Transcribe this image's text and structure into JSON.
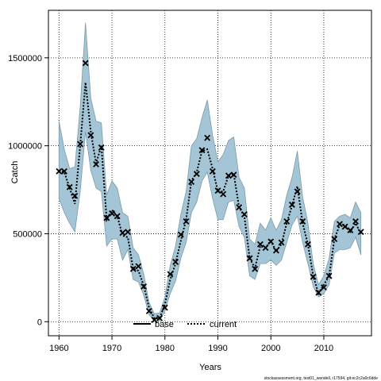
{
  "chart_data": {
    "type": "line",
    "xlabel": "Years",
    "ylabel": "Catch",
    "xlim": [
      1958,
      2019
    ],
    "ylim": [
      -80000,
      1770000
    ],
    "x_ticks": [
      1960,
      1970,
      1980,
      1990,
      2000,
      2010
    ],
    "y_ticks": [
      0,
      500000,
      1000000,
      1500000
    ],
    "grid": true,
    "legend_placement": "bottom-center",
    "legend": [
      {
        "label": "base",
        "style": "solid",
        "color": "#000000"
      },
      {
        "label": "current",
        "style": "dotted",
        "color": "#000000"
      }
    ],
    "band_color": "#a3c5d6",
    "band_edge_color": "#7d9aa8",
    "years": [
      1960,
      1961,
      1962,
      1963,
      1964,
      1965,
      1966,
      1967,
      1968,
      1969,
      1970,
      1971,
      1972,
      1973,
      1974,
      1975,
      1976,
      1977,
      1978,
      1979,
      1980,
      1981,
      1982,
      1983,
      1984,
      1985,
      1986,
      1987,
      1988,
      1989,
      1990,
      1991,
      1992,
      1993,
      1994,
      1995,
      1996,
      1997,
      1998,
      1999,
      2000,
      2001,
      2002,
      2003,
      2004,
      2005,
      2006,
      2007,
      2008,
      2009,
      2010,
      2011,
      2012,
      2013,
      2014,
      2015,
      2016,
      2017
    ],
    "observed": [
      855000,
      855000,
      765000,
      715000,
      1010000,
      1470000,
      1060000,
      895000,
      990000,
      590000,
      615000,
      600000,
      505000,
      510000,
      300000,
      315000,
      200000,
      60000,
      10000,
      20000,
      80000,
      270000,
      340000,
      495000,
      570000,
      795000,
      840000,
      975000,
      1045000,
      855000,
      745000,
      725000,
      830000,
      835000,
      650000,
      610000,
      360000,
      300000,
      440000,
      420000,
      455000,
      405000,
      450000,
      570000,
      665000,
      740000,
      570000,
      440000,
      255000,
      165000,
      195000,
      260000,
      470000,
      555000,
      540000,
      520000,
      570000,
      510000
    ],
    "current": [
      860000,
      850000,
      760000,
      670000,
      1000000,
      1360000,
      1080000,
      900000,
      1000000,
      580000,
      635000,
      600000,
      490000,
      480000,
      300000,
      290000,
      205000,
      80000,
      20000,
      20000,
      100000,
      240000,
      330000,
      460000,
      580000,
      800000,
      850000,
      970000,
      980000,
      870000,
      740000,
      740000,
      830000,
      840000,
      650000,
      600000,
      360000,
      305000,
      430000,
      420000,
      460000,
      400000,
      440000,
      560000,
      660000,
      770000,
      560000,
      440000,
      260000,
      160000,
      210000,
      260000,
      470000,
      550000,
      550000,
      510000,
      560000,
      500000
    ],
    "upper": [
      1140000,
      980000,
      870000,
      880000,
      1220000,
      1700000,
      1270000,
      1140000,
      1130000,
      720000,
      800000,
      760000,
      620000,
      600000,
      420000,
      380000,
      270000,
      110000,
      45000,
      50000,
      140000,
      320000,
      430000,
      610000,
      740000,
      1000000,
      1040000,
      1160000,
      1260000,
      1060000,
      910000,
      950000,
      1030000,
      1050000,
      820000,
      760000,
      470000,
      440000,
      560000,
      520000,
      590000,
      520000,
      580000,
      720000,
      820000,
      970000,
      710000,
      560000,
      330000,
      210000,
      260000,
      360000,
      570000,
      600000,
      610000,
      590000,
      680000,
      620000
    ],
    "lower": [
      700000,
      620000,
      560000,
      510000,
      740000,
      1080000,
      860000,
      760000,
      740000,
      430000,
      470000,
      470000,
      350000,
      410000,
      240000,
      225000,
      150000,
      40000,
      5000,
      5000,
      60000,
      160000,
      230000,
      360000,
      450000,
      620000,
      680000,
      800000,
      850000,
      700000,
      580000,
      580000,
      680000,
      690000,
      540000,
      480000,
      260000,
      240000,
      330000,
      330000,
      350000,
      320000,
      350000,
      450000,
      550000,
      600000,
      450000,
      330000,
      200000,
      140000,
      160000,
      210000,
      390000,
      410000,
      410000,
      420000,
      480000,
      380000
    ]
  },
  "footer": {
    "text": "stockassessment.org, test01_wendell, r17594, git:ec2c2a0c6dde"
  }
}
